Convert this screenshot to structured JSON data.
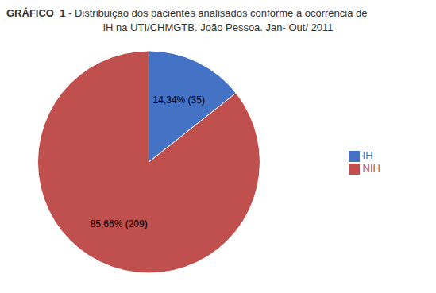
{
  "chart_data": {
    "type": "pie",
    "title": "GRÁFICO  1 - Distribuição dos pacientes analisados conforme a ocorrência de",
    "subtitle": "IH na UTI/CHMGTB. João Pessoa. Jan- Out/ 2011",
    "categories": [
      "IH",
      "NIH"
    ],
    "values": [
      14.34,
      85.66
    ],
    "value_labels": [
      "14,34% (35)",
      "85,66% (209)"
    ],
    "colors": [
      "#4472C4",
      "#C0504D"
    ],
    "data_labels": true,
    "legend": "right"
  }
}
